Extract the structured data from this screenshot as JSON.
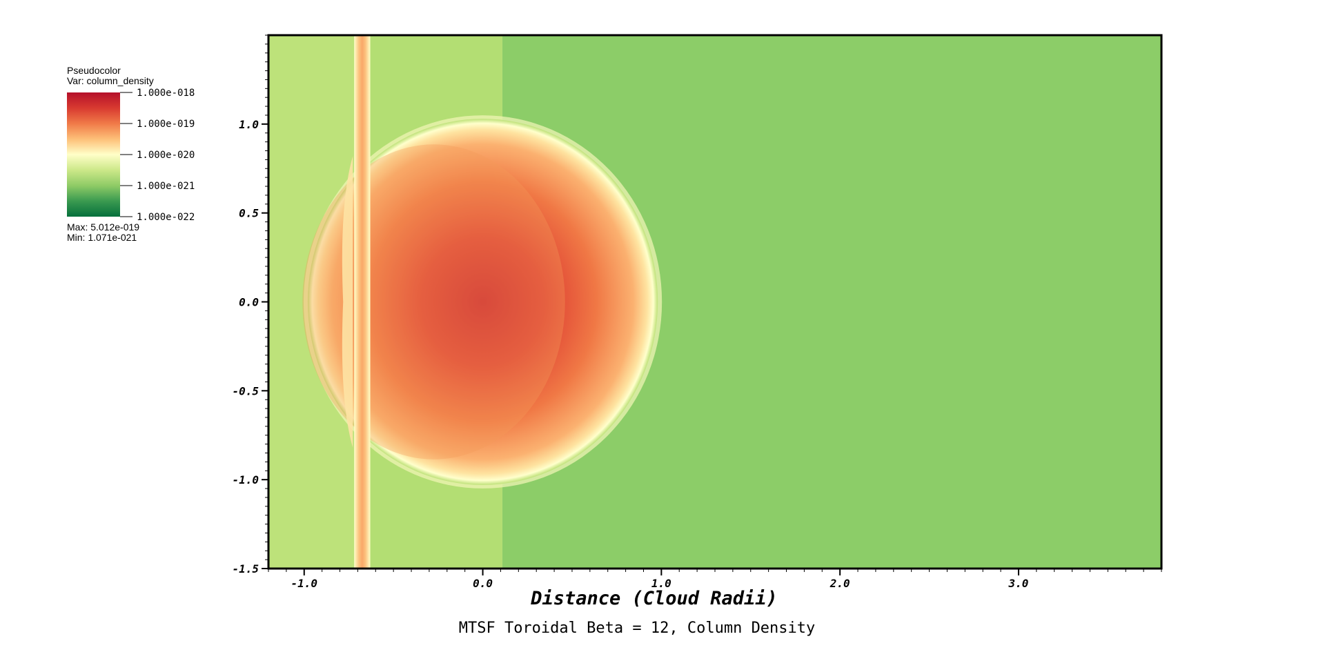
{
  "legend": {
    "plot_type": "Pseudocolor",
    "var_label": "Var: column_density",
    "ticks": [
      "1.000e-018",
      "1.000e-019",
      "1.000e-020",
      "1.000e-021",
      "1.000e-022"
    ],
    "max_label": "Max:  5.012e-019",
    "min_label": "Min:  1.071e-021",
    "colormap": [
      "#b5102a",
      "#d83a30",
      "#f07a48",
      "#fdbf78",
      "#ffffc8",
      "#cce889",
      "#8fcb66",
      "#3a9a50",
      "#06703c"
    ]
  },
  "chart_data": {
    "type": "heatmap",
    "title": "MTSF Toroidal Beta = 12, Column Density",
    "xlabel": "Distance (Cloud Radii)",
    "ylabel": "",
    "xlim": [
      -1.2,
      3.8
    ],
    "ylim": [
      -1.5,
      1.5
    ],
    "x_ticks": [
      -1.0,
      0.0,
      1.0,
      2.0,
      3.0
    ],
    "y_ticks": [
      1.0,
      0.5,
      0.0,
      -0.5,
      -1.0,
      -1.5
    ],
    "x_tick_labels": [
      "-1.0",
      "0.0",
      "1.0",
      "2.0",
      "3.0"
    ],
    "y_tick_labels": [
      "1.0",
      "0.5",
      "0.0",
      "-0.5",
      "-1.0",
      "-1.5"
    ],
    "background_colors": {
      "upstream": "#bde27a",
      "inner": "#b3de73",
      "downstream": "#8ccd68"
    },
    "regions": [
      {
        "name": "cloud",
        "center": [
          0.0,
          0.0
        ],
        "radius_x": 0.98,
        "radius_y": 1.03,
        "peak_value": "5.012e-019"
      },
      {
        "name": "shock-band",
        "x_range": [
          -0.72,
          -0.63
        ]
      },
      {
        "name": "background-step",
        "x": 0.11
      }
    ]
  }
}
